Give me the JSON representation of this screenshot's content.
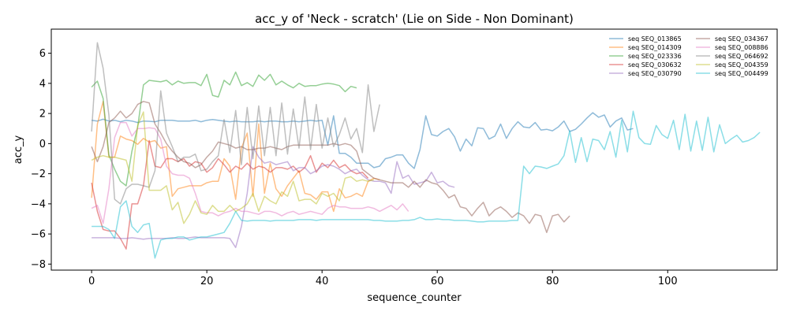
{
  "chart_data": {
    "type": "line",
    "title": "acc_y of 'Neck - scratch' (Lie on Side - Non Dominant)",
    "xlabel": "sequence_counter",
    "ylabel": "acc_y",
    "xlim": [
      -7,
      119
    ],
    "ylim": [
      -8.4,
      7.6
    ],
    "xticks": [
      0,
      20,
      40,
      60,
      80,
      100
    ],
    "yticks": [
      -8,
      -6,
      -4,
      -2,
      0,
      2,
      4,
      6
    ],
    "grid": false,
    "legend_position": "top-right",
    "legend_columns": 2,
    "series": [
      {
        "name": "seq SEQ_013865",
        "color": "#1f77b4",
        "values": [
          1.55,
          1.5,
          1.62,
          1.5,
          1.55,
          1.45,
          1.55,
          1.5,
          1.4,
          1.5,
          1.48,
          1.45,
          1.55,
          1.55,
          1.55,
          1.5,
          1.5,
          1.5,
          1.55,
          1.45,
          1.55,
          1.6,
          1.55,
          1.5,
          1.45,
          1.5,
          1.45,
          1.45,
          1.45,
          1.5,
          1.45,
          1.5,
          1.5,
          1.45,
          1.45,
          1.5,
          1.45,
          1.5,
          1.55,
          1.5,
          1.55,
          -0.1,
          1.85,
          -0.65,
          -0.65,
          -0.9,
          -1.3,
          -1.3,
          -1.3,
          -1.6,
          -1.5,
          -1.0,
          -0.9,
          -0.75,
          -0.75,
          -1.3,
          -1.65,
          -0.4,
          1.85,
          0.6,
          0.5,
          0.8,
          1.0,
          0.45,
          -0.5,
          0.3,
          -0.15,
          1.05,
          1.0,
          0.3,
          0.5,
          1.3,
          0.35,
          1.0,
          1.45,
          1.1,
          1.05,
          1.4,
          0.9,
          0.95,
          0.85,
          1.1,
          1.5,
          0.8,
          0.95,
          1.3,
          1.7,
          2.05,
          1.75,
          1.9,
          1.1,
          1.5,
          1.7,
          0.9,
          1.0
        ]
      },
      {
        "name": "seq SEQ_014309",
        "color": "#ff7f0e",
        "values": [
          -3.6,
          1.3,
          2.8,
          -0.9,
          -0.9,
          0.5,
          0.3,
          0.2,
          -0.05,
          0.35,
          0.1,
          0.2,
          -0.3,
          -0.2,
          -3.5,
          -3.0,
          -2.9,
          -2.8,
          -2.8,
          -2.8,
          -2.6,
          -2.5,
          -2.5,
          -1.0,
          -1.5,
          -3.7,
          -0.3,
          0.7,
          -3.5,
          1.3,
          -3.3,
          -1.3,
          -3.0,
          -3.5,
          -2.8,
          -2.3,
          -1.8,
          -3.3,
          -3.4,
          -3.7,
          -3.2,
          -3.2,
          -4.5,
          -3.0,
          -3.6,
          -3.5,
          -3.3,
          -3.5,
          -2.5,
          -2.3,
          -2.4
        ]
      },
      {
        "name": "seq SEQ_023336",
        "color": "#2ca02c",
        "values": [
          3.75,
          4.15,
          3.0,
          -0.75,
          -1.7,
          -2.5,
          -2.8,
          -0.5,
          1.1,
          3.9,
          4.2,
          4.15,
          4.1,
          4.2,
          3.9,
          4.15,
          4.0,
          4.05,
          4.05,
          3.85,
          4.6,
          3.2,
          3.1,
          4.2,
          3.9,
          4.75,
          3.85,
          4.05,
          3.8,
          4.55,
          4.2,
          4.6,
          3.9,
          4.15,
          3.9,
          3.7,
          4.0,
          3.8,
          3.85,
          3.85,
          3.95,
          4.0,
          3.95,
          3.85,
          3.45,
          3.8,
          3.7
        ]
      },
      {
        "name": "seq SEQ_030632",
        "color": "#d62728",
        "values": [
          -2.6,
          -4.5,
          -5.7,
          -5.8,
          -5.8,
          -6.3,
          -7.0,
          -4.0,
          -4.0,
          -2.8,
          0.2,
          -1.5,
          -1.6,
          -1.0,
          -1.0,
          -1.2,
          -1.0,
          -1.5,
          -1.2,
          -1.3,
          -1.9,
          -1.6,
          -1.0,
          -1.4,
          -1.9,
          -1.5,
          -1.7,
          -1.3,
          -1.7,
          -1.5,
          -1.6,
          -1.9,
          -1.6,
          -1.6,
          -1.7,
          -1.5,
          -1.9,
          -1.6,
          -0.8,
          -1.9,
          -1.3,
          -1.6,
          -1.1,
          -1.6,
          -1.4,
          -1.8,
          -2.0,
          -1.9,
          -2.3
        ]
      },
      {
        "name": "seq SEQ_030790",
        "color": "#9467bd",
        "values": [
          -6.25,
          -6.25,
          -6.25,
          -6.25,
          -6.25,
          -6.3,
          -6.3,
          -6.25,
          -6.3,
          -6.35,
          -6.3,
          -6.3,
          -6.3,
          -6.3,
          -6.25,
          -6.3,
          -6.3,
          -6.25,
          -6.2,
          -6.25,
          -6.25,
          -6.25,
          -6.25,
          -6.25,
          -6.3,
          -6.9,
          -5.5,
          -3.3,
          -0.2,
          -0.9,
          -1.3,
          -1.2,
          -1.4,
          -1.3,
          -1.2,
          -1.8,
          -1.6,
          -1.6,
          -2.0,
          -1.8,
          -1.5,
          -1.4,
          -1.5,
          -1.7,
          -2.0,
          -1.8,
          -1.7,
          -2.1,
          -2.4,
          -2.5,
          -2.5,
          -2.6,
          -3.3,
          -1.2,
          -2.3,
          -2.1,
          -2.7,
          -2.6,
          -2.5,
          -1.9,
          -2.6,
          -2.5,
          -2.8,
          -2.9
        ]
      },
      {
        "name": "seq SEQ_034367",
        "color": "#8c564b",
        "values": [
          -0.2,
          -1.2,
          -0.2,
          1.4,
          1.7,
          2.15,
          1.7,
          2.0,
          2.6,
          2.8,
          2.7,
          1.3,
          0.7,
          0.0,
          -0.5,
          -0.9,
          -1.2,
          -1.3,
          -1.6,
          -1.4,
          -0.9,
          -0.5,
          0.1,
          0.0,
          -0.1,
          -0.3,
          -0.2,
          -0.4,
          -0.4,
          -0.3,
          -0.3,
          -0.2,
          -0.3,
          -0.4,
          -0.2,
          -0.1,
          -0.1,
          -0.1,
          -0.1,
          -0.1,
          -0.1,
          -0.1,
          0.0,
          -0.1,
          0.0,
          -0.1,
          -0.5,
          -1.7,
          -2.0,
          -2.3,
          -2.4,
          -2.5,
          -2.6,
          -2.6,
          -2.6,
          -2.9,
          -2.5,
          -2.9,
          -2.4,
          -2.6,
          -2.7,
          -3.1,
          -3.6,
          -3.4,
          -4.2,
          -4.3,
          -4.8,
          -4.3,
          -3.9,
          -4.8,
          -4.4,
          -4.2,
          -4.5,
          -4.9,
          -4.6,
          -4.8,
          -5.3,
          -4.7,
          -4.8,
          -5.9,
          -4.8,
          -4.7,
          -5.2,
          -4.8
        ]
      },
      {
        "name": "seq SEQ_008886",
        "color": "#e377c2",
        "values": [
          -4.3,
          -4.1,
          -5.3,
          -3.0,
          0.4,
          1.4,
          1.4,
          0.5,
          1.0,
          1.0,
          1.05,
          1.0,
          0.3,
          -1.5,
          -2.0,
          -2.1,
          -2.1,
          -2.3,
          -3.3,
          -4.5,
          -4.6,
          -4.6,
          -4.8,
          -4.6,
          -4.5,
          -4.3,
          -4.5,
          -4.5,
          -4.6,
          -4.7,
          -4.5,
          -4.5,
          -4.6,
          -4.8,
          -4.6,
          -4.5,
          -4.7,
          -4.6,
          -4.5,
          -4.6,
          -4.7,
          -4.3,
          -4.1,
          -4.2,
          -4.2,
          -4.3,
          -4.3,
          -4.3,
          -4.2,
          -4.3,
          -4.5,
          -4.3,
          -4.1,
          -4.4,
          -4.0,
          -4.5
        ]
      },
      {
        "name": "seq SEQ_064692",
        "color": "#7f7f7f",
        "values": [
          0.8,
          6.7,
          5.0,
          1.9,
          -3.7,
          -4.0,
          -3.0,
          -2.7,
          -2.7,
          -2.8,
          -2.9,
          -1.8,
          3.5,
          0.7,
          -0.2,
          -1.2,
          -0.9,
          -0.9,
          -0.7,
          -1.8,
          -1.7,
          -1.2,
          -0.8,
          1.6,
          -0.6,
          2.2,
          -1.4,
          2.4,
          -1.0,
          2.5,
          -0.8,
          2.4,
          -0.8,
          2.7,
          -0.7,
          2.3,
          -0.3,
          3.1,
          -0.4,
          2.6,
          -0.3,
          1.7,
          -0.2,
          0.6,
          1.7,
          0.3,
          1.0,
          -0.6,
          3.9,
          0.8,
          2.6
        ]
      },
      {
        "name": "seq SEQ_004359",
        "color": "#bcbd22",
        "values": [
          -1.1,
          -0.9,
          -0.8,
          -0.9,
          -0.9,
          -1.0,
          -1.1,
          -2.5,
          1.2,
          2.1,
          -3.1,
          -3.1,
          -3.1,
          -2.8,
          -4.4,
          -3.9,
          -5.3,
          -4.7,
          -3.8,
          -4.6,
          -4.7,
          -4.1,
          -4.5,
          -4.5,
          -4.1,
          -4.5,
          -4.3,
          -4.0,
          -3.3,
          -4.5,
          -3.5,
          -3.8,
          -4.0,
          -3.2,
          -3.5,
          -2.5,
          -3.8,
          -3.7,
          -3.7,
          -4.0,
          -3.3,
          -3.5,
          -3.3,
          -3.8,
          -2.3,
          -2.2,
          -2.5,
          -2.4,
          -2.5,
          -2.4
        ]
      },
      {
        "name": "seq SEQ_004499",
        "color": "#17becf",
        "values": [
          -5.5,
          -5.5,
          -5.5,
          -5.7,
          -6.3,
          -4.2,
          -3.8,
          -5.5,
          -5.9,
          -5.4,
          -5.3,
          -7.6,
          -6.4,
          -6.3,
          -6.3,
          -6.2,
          -6.2,
          -6.4,
          -6.3,
          -6.2,
          -6.2,
          -6.1,
          -6.0,
          -5.9,
          -5.3,
          -4.5,
          -5.1,
          -5.15,
          -5.1,
          -5.1,
          -5.1,
          -5.15,
          -5.1,
          -5.1,
          -5.1,
          -5.1,
          -5.05,
          -5.05,
          -5.05,
          -5.1,
          -5.05,
          -5.05,
          -5.05,
          -5.05,
          -5.05,
          -5.05,
          -5.05,
          -5.05,
          -5.05,
          -5.1,
          -5.1,
          -5.15,
          -5.15,
          -5.15,
          -5.1,
          -5.1,
          -5.05,
          -4.9,
          -5.05,
          -5.05,
          -5.0,
          -5.05,
          -5.05,
          -5.1,
          -5.1,
          -5.1,
          -5.15,
          -5.2,
          -5.2,
          -5.15,
          -5.15,
          -5.15,
          -5.15,
          -5.1,
          -5.1,
          -1.5,
          -2.0,
          -1.5,
          -1.55,
          -1.65,
          -1.5,
          -1.35,
          -0.8,
          0.85,
          -1.25,
          0.4,
          -1.2,
          0.3,
          0.2,
          -0.4,
          0.8,
          -0.9,
          1.55,
          -0.55,
          2.15,
          0.4,
          0.0,
          -0.05,
          1.2,
          0.6,
          0.35,
          1.55,
          -0.4,
          1.95,
          -0.5,
          1.5,
          -0.45,
          1.75,
          -0.55,
          1.25,
          0.0,
          0.3,
          0.55,
          0.1,
          0.2,
          0.4,
          0.75
        ]
      }
    ]
  }
}
